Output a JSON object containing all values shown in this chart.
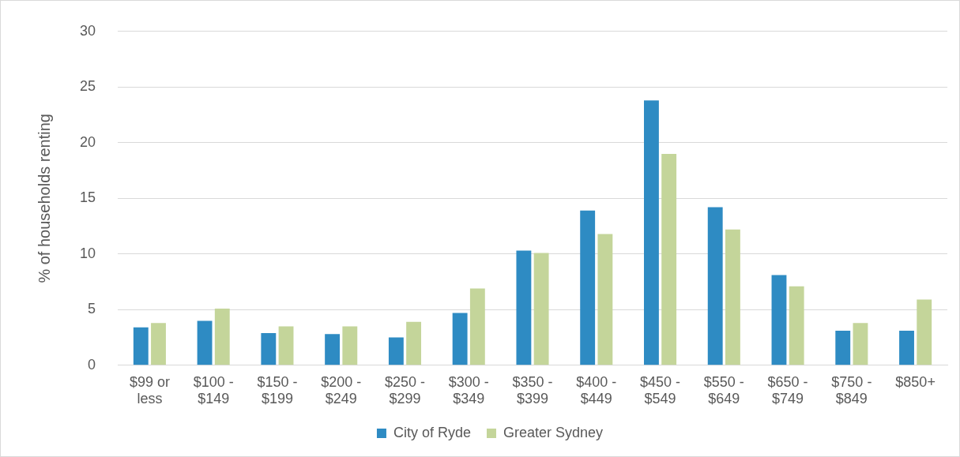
{
  "chart_data": {
    "type": "bar",
    "ylabel": "% of households renting",
    "categories": [
      "$99 or less",
      "$100 - $149",
      "$150 - $199",
      "$200 - $249",
      "$250 - $299",
      "$300 - $349",
      "$350 - $399",
      "$400 - $449",
      "$450 - $549",
      "$550 - $649",
      "$650 - $749",
      "$750 - $849",
      "$850+"
    ],
    "series": [
      {
        "name": "City of Ryde",
        "color": "#2e8bc3",
        "values": [
          3.4,
          4.0,
          2.9,
          2.8,
          2.5,
          4.7,
          10.3,
          13.9,
          23.8,
          14.2,
          8.1,
          3.1,
          3.1
        ]
      },
      {
        "name": "Greater Sydney",
        "color": "#c4d59a",
        "values": [
          3.8,
          5.1,
          3.5,
          3.5,
          3.9,
          6.9,
          10.1,
          11.8,
          19.0,
          12.2,
          7.1,
          3.8,
          5.9
        ]
      }
    ],
    "ylim": [
      0,
      30
    ],
    "yticks": [
      0,
      5,
      10,
      15,
      20,
      25,
      30
    ],
    "grid": "y",
    "legend": "bottom"
  }
}
